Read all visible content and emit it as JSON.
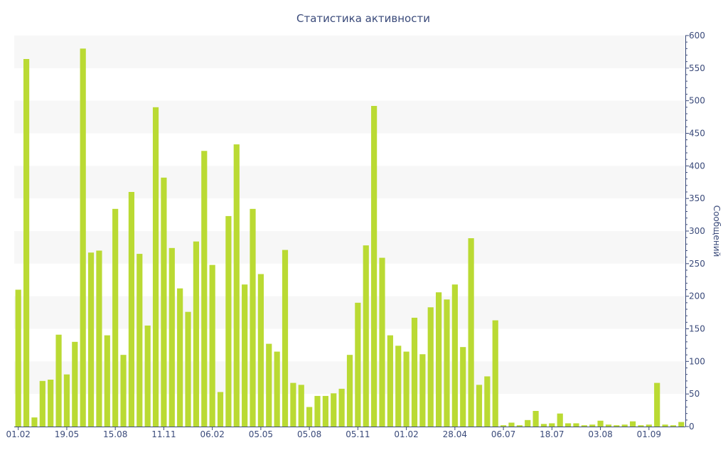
{
  "chart_data": {
    "type": "bar",
    "title": "Статистика активности",
    "ylabel": "Сообщений",
    "xlabel": "",
    "ylim": [
      0,
      600
    ],
    "y_ticks": [
      0,
      50,
      100,
      150,
      200,
      250,
      300,
      350,
      400,
      450,
      500,
      550,
      600
    ],
    "x_tick_labels": [
      {
        "index": 0,
        "label": "01.02"
      },
      {
        "index": 6,
        "label": "19.05"
      },
      {
        "index": 12,
        "label": "15.08"
      },
      {
        "index": 18,
        "label": "11.11"
      },
      {
        "index": 24,
        "label": "06.02"
      },
      {
        "index": 30,
        "label": "05.05"
      },
      {
        "index": 36,
        "label": "05.08"
      },
      {
        "index": 42,
        "label": "05.11"
      },
      {
        "index": 48,
        "label": "01.02"
      },
      {
        "index": 54,
        "label": "28.04"
      },
      {
        "index": 60,
        "label": "06.07"
      },
      {
        "index": 66,
        "label": "18.07"
      },
      {
        "index": 72,
        "label": "03.08"
      },
      {
        "index": 78,
        "label": "01.09"
      }
    ],
    "values": [
      210,
      564,
      14,
      70,
      72,
      141,
      80,
      130,
      580,
      267,
      270,
      140,
      334,
      110,
      360,
      265,
      155,
      490,
      382,
      274,
      212,
      176,
      284,
      423,
      248,
      53,
      323,
      433,
      218,
      334,
      234,
      127,
      115,
      271,
      67,
      64,
      30,
      47,
      47,
      51,
      58,
      110,
      190,
      278,
      492,
      259,
      140,
      124,
      115,
      167,
      111,
      183,
      206,
      195,
      218,
      122,
      289,
      64,
      77,
      163,
      2,
      6,
      2,
      10,
      24,
      4,
      5,
      20,
      5,
      5,
      2,
      3,
      9,
      3,
      2,
      3,
      8,
      2,
      3,
      67,
      3,
      2,
      7
    ],
    "bar_color": "#bada33",
    "grid": true,
    "band_color": "#f7f7f7"
  }
}
